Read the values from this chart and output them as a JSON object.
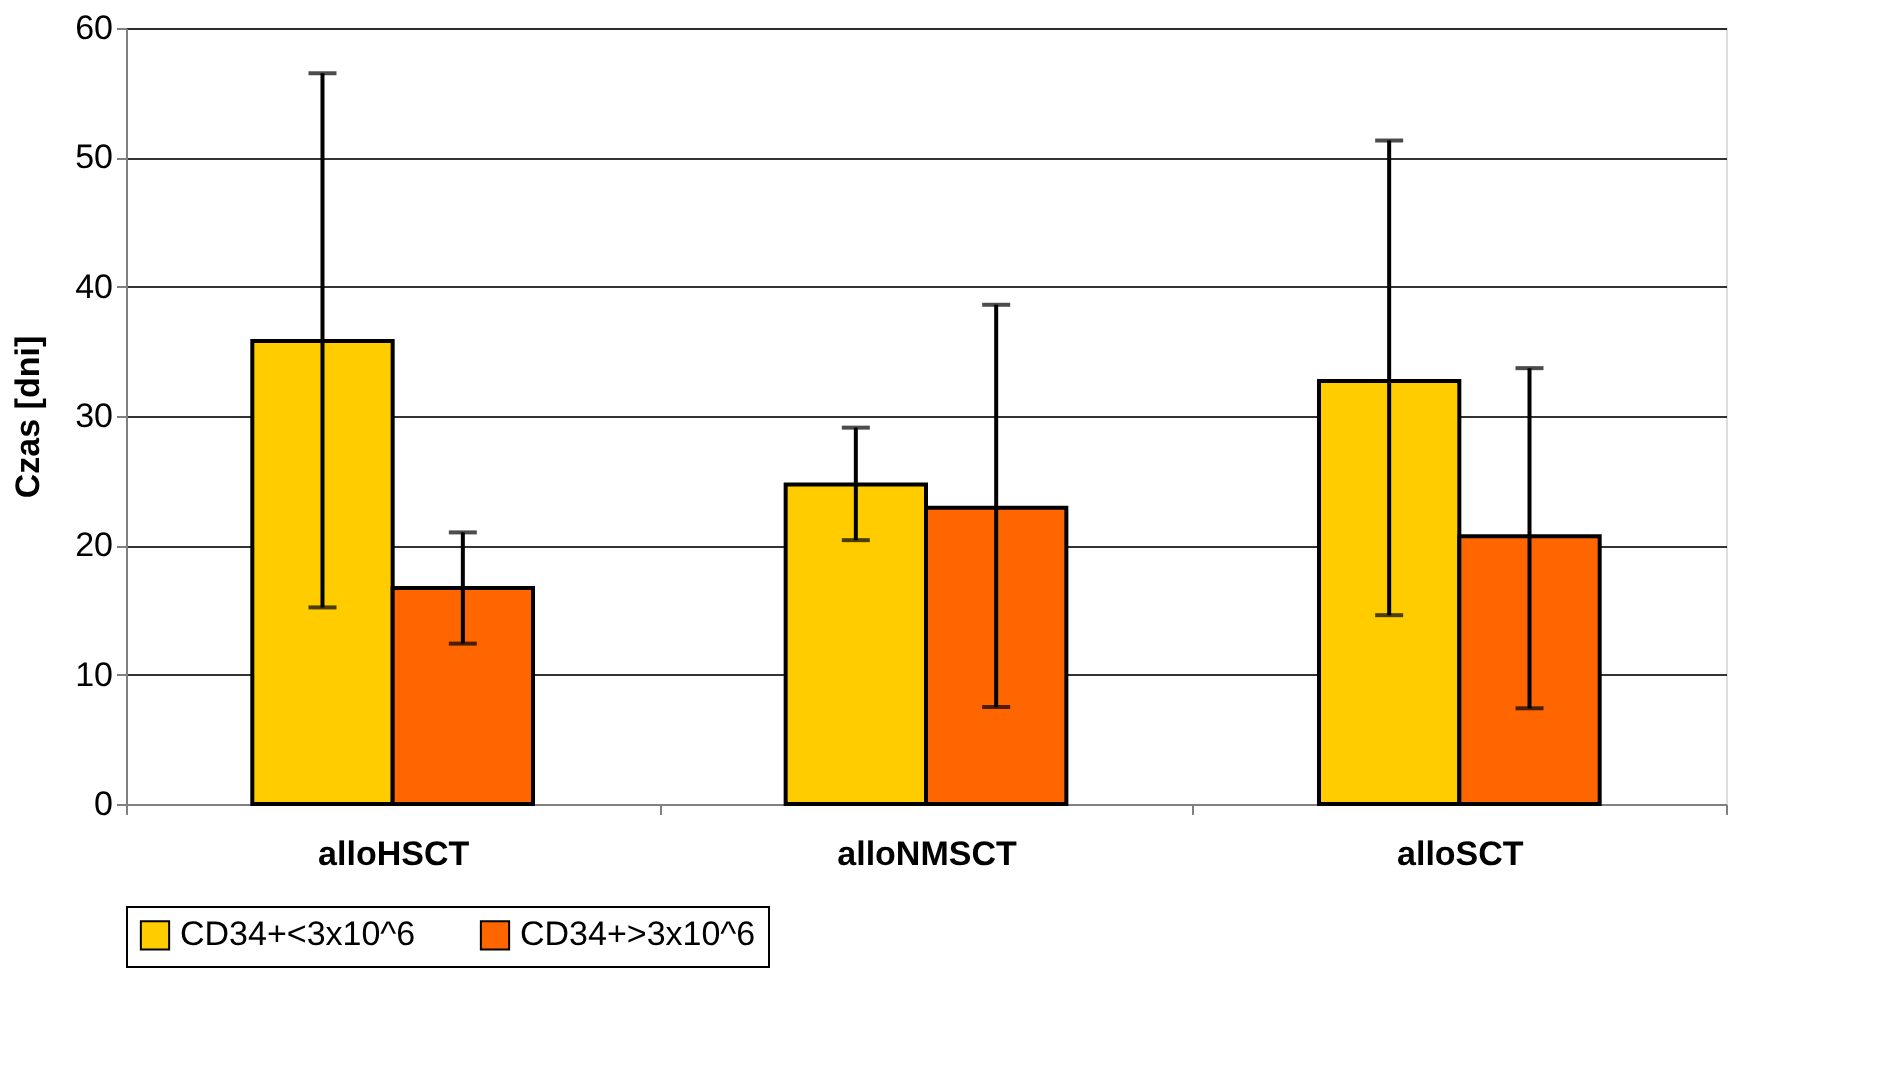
{
  "chart_data": {
    "type": "bar",
    "ylabel": "Czas [dni]",
    "categories": [
      "alloHSCT",
      "alloNMSCT",
      "alloSCT"
    ],
    "series": [
      {
        "name": "CD34+<3x10^6",
        "color": "#ffcc00",
        "values": [
          35.8,
          24.7,
          32.7
        ],
        "errors": [
          [
            15.2,
            56.5
          ],
          [
            20.4,
            29.1
          ],
          [
            14.6,
            51.3
          ]
        ]
      },
      {
        "name": "CD34+>3x10^6",
        "color": "#ff6600",
        "values": [
          16.7,
          22.9,
          20.7
        ],
        "errors": [
          [
            12.4,
            21.0
          ],
          [
            7.5,
            38.6
          ],
          [
            7.4,
            33.7
          ]
        ]
      }
    ],
    "ylim": [
      0,
      60
    ],
    "yticks": [
      0,
      10,
      20,
      30,
      40,
      50,
      60
    ],
    "grid": "y",
    "legend": "bottom"
  }
}
